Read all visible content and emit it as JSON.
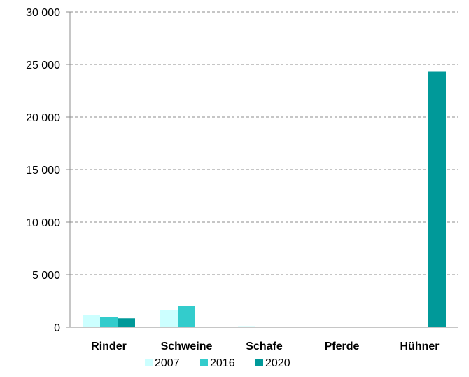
{
  "chart_data": {
    "type": "bar",
    "title": "",
    "xlabel": "",
    "ylabel": "",
    "categories": [
      "Rinder",
      "Schweine",
      "Schafe",
      "Pferde",
      "Hühner"
    ],
    "series": [
      {
        "name": "2007",
        "color": "#ccffff",
        "values": [
          1200,
          1600,
          100,
          0,
          0
        ]
      },
      {
        "name": "2016",
        "color": "#33cccc",
        "values": [
          1000,
          2000,
          0,
          0,
          0
        ]
      },
      {
        "name": "2020",
        "color": "#009999",
        "values": [
          850,
          0,
          0,
          0,
          24300
        ]
      }
    ],
    "ylim": [
      0,
      30000
    ],
    "y_ticks": [
      {
        "value": 0,
        "label": "0"
      },
      {
        "value": 5000,
        "label": "5 000"
      },
      {
        "value": 10000,
        "label": "10 000"
      },
      {
        "value": 15000,
        "label": "15 000"
      },
      {
        "value": 20000,
        "label": "20 000"
      },
      {
        "value": 25000,
        "label": "25 000"
      },
      {
        "value": 30000,
        "label": "30 000"
      }
    ],
    "grid": true,
    "grid_style": "dashed",
    "legend_position": "bottom"
  }
}
